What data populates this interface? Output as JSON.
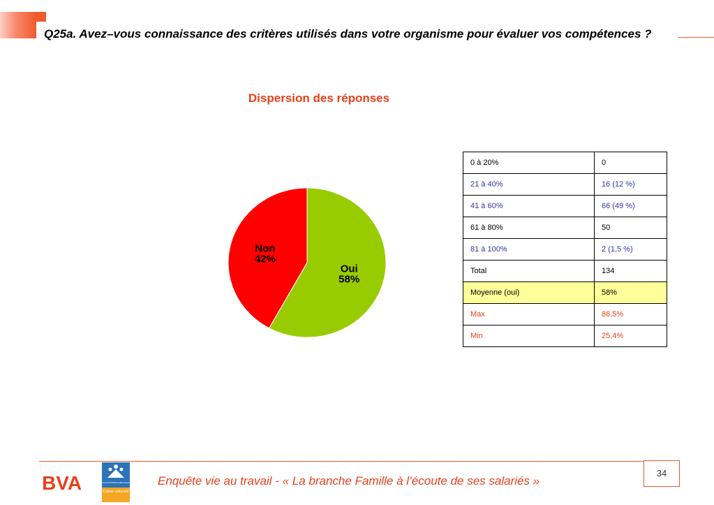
{
  "header": {
    "question": "Q25a. Avez–vous connaissance des critères utilisés dans votre organisme pour évaluer vos compétences ?"
  },
  "chart_data": {
    "type": "pie",
    "title": "Dispersion des réponses",
    "categories": [
      "Oui",
      "Non"
    ],
    "values": [
      58,
      42
    ],
    "labels": [
      "58%",
      "42%"
    ],
    "colors": [
      "#99cc00",
      "#ff0000"
    ]
  },
  "table": {
    "rows": [
      {
        "label": "0 à 20%",
        "value": "0",
        "color": "#000000",
        "bg": "#ffffff"
      },
      {
        "label": "21 à 40%",
        "value": "16 (12 %)",
        "color": "#3333aa",
        "bg": "#ffffff"
      },
      {
        "label": "41 à 60%",
        "value": "66 (49 %)",
        "color": "#3333aa",
        "bg": "#ffffff"
      },
      {
        "label": "61 à 80%",
        "value": "50",
        "color": "#000000",
        "bg": "#ffffff"
      },
      {
        "label": "81 à 100%",
        "value": "2 (1,5 %)",
        "color": "#3333aa",
        "bg": "#ffffff"
      },
      {
        "label": "Total",
        "value": "134",
        "color": "#000000",
        "bg": "#ffffff"
      },
      {
        "label": "Moyenne (oui)",
        "value": "58%",
        "color": "#000000",
        "bg": "#ffff99"
      },
      {
        "label": "Max",
        "value": "86,5%",
        "color": "#e8401c",
        "bg": "#ffffff"
      },
      {
        "label": "Min",
        "value": "25,4%",
        "color": "#e8401c",
        "bg": "#ffffff"
      }
    ]
  },
  "footer": {
    "text": "Enquête vie au travail - « La branche Famille à l’écoute de ses salariés »",
    "page_number": "34",
    "bva_logo": "BVA",
    "caf_logo_top": "ALLOCATIONS FAMILIALES",
    "caf_logo_bottom": "Caisse nationale"
  }
}
